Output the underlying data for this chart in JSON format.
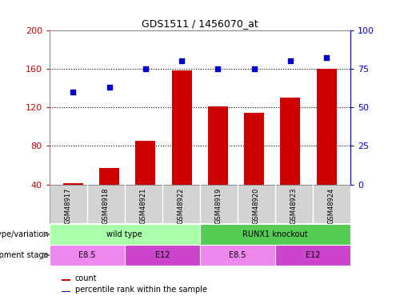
{
  "title": "GDS1511 / 1456070_at",
  "samples": [
    "GSM48917",
    "GSM48918",
    "GSM48921",
    "GSM48922",
    "GSM48919",
    "GSM48920",
    "GSM48923",
    "GSM48924"
  ],
  "counts": [
    41,
    57,
    85,
    158,
    121,
    114,
    130,
    160
  ],
  "percentiles": [
    60,
    63,
    75,
    80,
    75,
    75,
    80,
    82
  ],
  "left_ylim": [
    40,
    200
  ],
  "left_yticks": [
    40,
    80,
    120,
    160,
    200
  ],
  "right_ylim": [
    0,
    100
  ],
  "right_yticks": [
    0,
    25,
    50,
    75,
    100
  ],
  "bar_color": "#cc0000",
  "scatter_color": "#0000cc",
  "left_tick_color": "#cc0000",
  "right_tick_color": "#0000cc",
  "genotype_groups": [
    {
      "label": "wild type",
      "start": 0,
      "end": 4,
      "color": "#aaffaa"
    },
    {
      "label": "RUNX1 knockout",
      "start": 4,
      "end": 8,
      "color": "#55cc55"
    }
  ],
  "stage_groups": [
    {
      "label": "E8.5",
      "start": 0,
      "end": 2,
      "color": "#ee88ee"
    },
    {
      "label": "E12",
      "start": 2,
      "end": 4,
      "color": "#cc44cc"
    },
    {
      "label": "E8.5",
      "start": 4,
      "end": 6,
      "color": "#ee88ee"
    },
    {
      "label": "E12",
      "start": 6,
      "end": 8,
      "color": "#cc44cc"
    }
  ],
  "genotype_label": "genotype/variation",
  "stage_label": "development stage",
  "legend_count_label": "count",
  "legend_pct_label": "percentile rank within the sample",
  "bar_width": 0.55,
  "fig_bg": "#ffffff",
  "plot_bg": "#ffffff",
  "sample_bg": "#d3d3d3",
  "gridline_ticks": [
    80,
    120,
    160
  ]
}
